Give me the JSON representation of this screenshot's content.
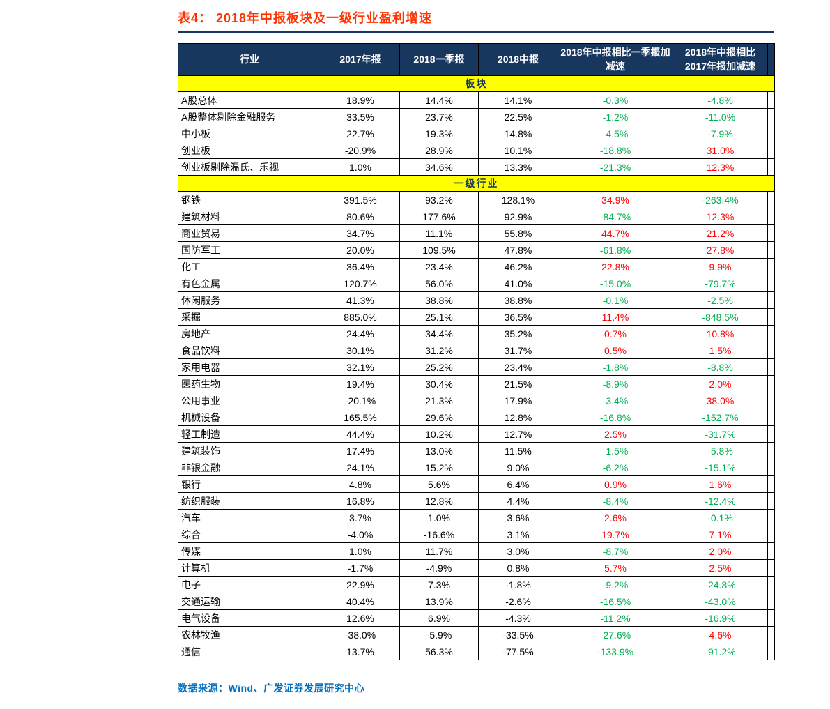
{
  "title": "表4：  2018年中报板块及一级行业盈利增速",
  "source": "数据来源：Wind、广发证券发展研究中心",
  "colors": {
    "title": "#FF3300",
    "header_bg": "#17375E",
    "header_text": "#FFFFFF",
    "section_bg": "#FFFF00",
    "section_text": "#17375E",
    "positive": "#FF0000",
    "negative": "#00B050",
    "source": "#0070C0",
    "border": "#000000"
  },
  "table": {
    "headers": [
      "行业",
      "2017年报",
      "2018一季报",
      "2018中报",
      "2018年中报相比一季报加减速",
      "2018年中报相比2017年报加减速"
    ],
    "sections": [
      {
        "label": "板块",
        "rows": [
          {
            "name": "A股总体",
            "values": [
              "18.9%",
              "14.4%",
              "14.1%",
              "-0.3%",
              "-4.8%"
            ]
          },
          {
            "name": "A股整体剔除金融服务",
            "values": [
              "33.5%",
              "23.7%",
              "22.5%",
              "-1.2%",
              "-11.0%"
            ]
          },
          {
            "name": "中小板",
            "values": [
              "22.7%",
              "19.3%",
              "14.8%",
              "-4.5%",
              "-7.9%"
            ]
          },
          {
            "name": "创业板",
            "values": [
              "-20.9%",
              "28.9%",
              "10.1%",
              "-18.8%",
              "31.0%"
            ]
          },
          {
            "name": "创业板剔除温氏、乐视",
            "values": [
              "1.0%",
              "34.6%",
              "13.3%",
              "-21.3%",
              "12.3%"
            ]
          }
        ]
      },
      {
        "label": "一级行业",
        "rows": [
          {
            "name": "钢铁",
            "values": [
              "391.5%",
              "93.2%",
              "128.1%",
              "34.9%",
              "-263.4%"
            ]
          },
          {
            "name": "建筑材料",
            "values": [
              "80.6%",
              "177.6%",
              "92.9%",
              "-84.7%",
              "12.3%"
            ]
          },
          {
            "name": "商业贸易",
            "values": [
              "34.7%",
              "11.1%",
              "55.8%",
              "44.7%",
              "21.2%"
            ]
          },
          {
            "name": "国防军工",
            "values": [
              "20.0%",
              "109.5%",
              "47.8%",
              "-61.8%",
              "27.8%"
            ]
          },
          {
            "name": "化工",
            "values": [
              "36.4%",
              "23.4%",
              "46.2%",
              "22.8%",
              "9.9%"
            ]
          },
          {
            "name": "有色金属",
            "values": [
              "120.7%",
              "56.0%",
              "41.0%",
              "-15.0%",
              "-79.7%"
            ]
          },
          {
            "name": "休闲服务",
            "values": [
              "41.3%",
              "38.8%",
              "38.8%",
              "-0.1%",
              "-2.5%"
            ]
          },
          {
            "name": "采掘",
            "values": [
              "885.0%",
              "25.1%",
              "36.5%",
              "11.4%",
              "-848.5%"
            ]
          },
          {
            "name": "房地产",
            "values": [
              "24.4%",
              "34.4%",
              "35.2%",
              "0.7%",
              "10.8%"
            ]
          },
          {
            "name": "食品饮料",
            "values": [
              "30.1%",
              "31.2%",
              "31.7%",
              "0.5%",
              "1.5%"
            ]
          },
          {
            "name": "家用电器",
            "values": [
              "32.1%",
              "25.2%",
              "23.4%",
              "-1.8%",
              "-8.8%"
            ]
          },
          {
            "name": "医药生物",
            "values": [
              "19.4%",
              "30.4%",
              "21.5%",
              "-8.9%",
              "2.0%"
            ]
          },
          {
            "name": "公用事业",
            "values": [
              "-20.1%",
              "21.3%",
              "17.9%",
              "-3.4%",
              "38.0%"
            ]
          },
          {
            "name": "机械设备",
            "values": [
              "165.5%",
              "29.6%",
              "12.8%",
              "-16.8%",
              "-152.7%"
            ]
          },
          {
            "name": "轻工制造",
            "values": [
              "44.4%",
              "10.2%",
              "12.7%",
              "2.5%",
              "-31.7%"
            ]
          },
          {
            "name": "建筑装饰",
            "values": [
              "17.4%",
              "13.0%",
              "11.5%",
              "-1.5%",
              "-5.8%"
            ]
          },
          {
            "name": "非银金融",
            "values": [
              "24.1%",
              "15.2%",
              "9.0%",
              "-6.2%",
              "-15.1%"
            ]
          },
          {
            "name": "银行",
            "values": [
              "4.8%",
              "5.6%",
              "6.4%",
              "0.9%",
              "1.6%"
            ]
          },
          {
            "name": "纺织服装",
            "values": [
              "16.8%",
              "12.8%",
              "4.4%",
              "-8.4%",
              "-12.4%"
            ]
          },
          {
            "name": "汽车",
            "values": [
              "3.7%",
              "1.0%",
              "3.6%",
              "2.6%",
              "-0.1%"
            ]
          },
          {
            "name": "综合",
            "values": [
              "-4.0%",
              "-16.6%",
              "3.1%",
              "19.7%",
              "7.1%"
            ]
          },
          {
            "name": "传媒",
            "values": [
              "1.0%",
              "11.7%",
              "3.0%",
              "-8.7%",
              "2.0%"
            ]
          },
          {
            "name": "计算机",
            "values": [
              "-1.7%",
              "-4.9%",
              "0.8%",
              "5.7%",
              "2.5%"
            ]
          },
          {
            "name": "电子",
            "values": [
              "22.9%",
              "7.3%",
              "-1.8%",
              "-9.2%",
              "-24.8%"
            ]
          },
          {
            "name": "交通运输",
            "values": [
              "40.4%",
              "13.9%",
              "-2.6%",
              "-16.5%",
              "-43.0%"
            ]
          },
          {
            "name": "电气设备",
            "values": [
              "12.6%",
              "6.9%",
              "-4.3%",
              "-11.2%",
              "-16.9%"
            ]
          },
          {
            "name": "农林牧渔",
            "values": [
              "-38.0%",
              "-5.9%",
              "-33.5%",
              "-27.6%",
              "4.6%"
            ]
          },
          {
            "name": "通信",
            "values": [
              "13.7%",
              "56.3%",
              "-77.5%",
              "-133.9%",
              "-91.2%"
            ]
          }
        ]
      }
    ]
  }
}
